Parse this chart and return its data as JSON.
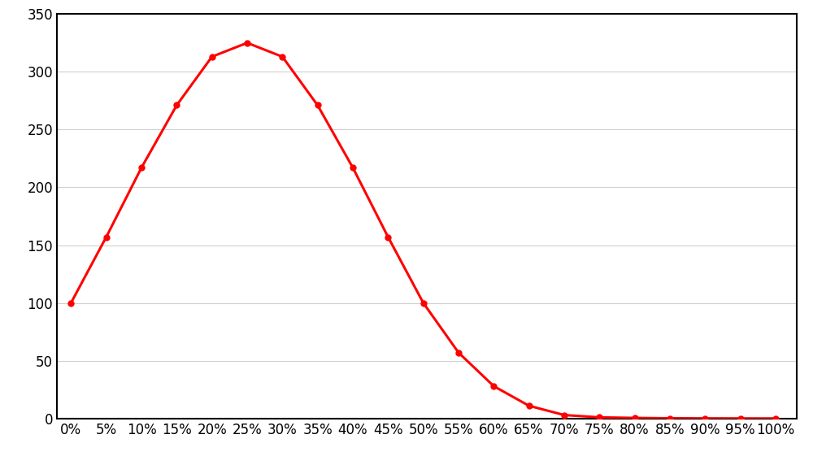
{
  "x_labels": [
    "0%",
    "5%",
    "10%",
    "15%",
    "20%",
    "25%",
    "30%",
    "35%",
    "40%",
    "45%",
    "50%",
    "55%",
    "60%",
    "65%",
    "70%",
    "75%",
    "80%",
    "85%",
    "90%",
    "95%",
    "100%"
  ],
  "x_values": [
    0,
    5,
    10,
    15,
    20,
    25,
    30,
    35,
    40,
    45,
    50,
    55,
    60,
    65,
    70,
    75,
    80,
    85,
    90,
    95,
    100
  ],
  "y_values": [
    100,
    157,
    217,
    271,
    313,
    325,
    313,
    271,
    217,
    157,
    100,
    57,
    28,
    11,
    3,
    1,
    0.5,
    0.2,
    0.1,
    0.05,
    0.02
  ],
  "line_color": "#ff0000",
  "marker_color": "#ff0000",
  "marker_style": "o",
  "marker_size": 5,
  "line_width": 2.2,
  "ylim": [
    0,
    350
  ],
  "yticks": [
    0,
    50,
    100,
    150,
    200,
    250,
    300,
    350
  ],
  "background_color": "#ffffff",
  "grid_color": "#d0d0d0",
  "spine_color": "#000000",
  "tick_label_fontsize": 12,
  "title": "",
  "xlabel": "",
  "ylabel": ""
}
